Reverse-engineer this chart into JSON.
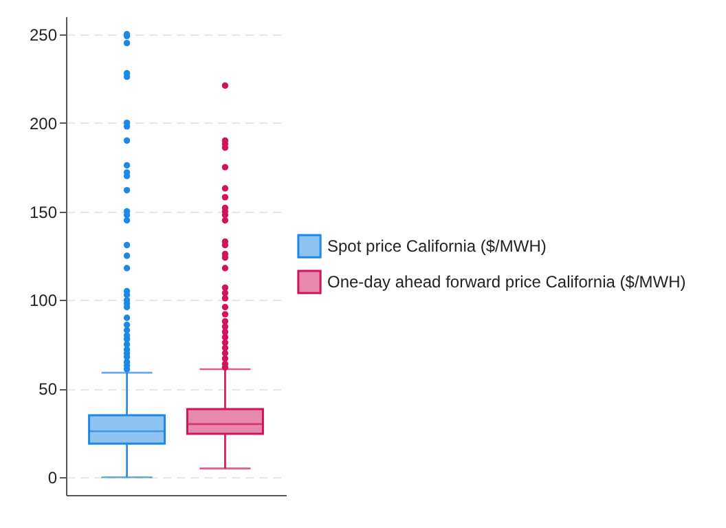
{
  "chart_data": {
    "type": "box",
    "categories": [
      null
    ],
    "series": [
      {
        "name": "Spot price California ($/MWH)",
        "color": "#1e88e5",
        "boxes": [
          {
            "low": 0,
            "q1": 19,
            "median": 26,
            "q3": 35,
            "high": 59,
            "outliers": [
              61,
              63,
              65,
              68,
              70,
              72,
              75,
              78,
              80,
              83,
              86,
              90,
              96,
              98,
              100,
              103,
              105,
              118,
              125,
              131,
              145,
              148,
              150,
              162,
              170,
              172,
              176,
              190,
              198,
              200,
              226,
              228,
              245,
              249,
              250
            ]
          }
        ]
      },
      {
        "name": "One-day ahead forward price California ($/MWH)",
        "color": "#d0135b",
        "boxes": [
          {
            "low": 5,
            "q1": 24.5,
            "median": 30,
            "q3": 38.5,
            "high": 61,
            "outliers": [
              62,
              64,
              67,
              70,
              73,
              76,
              79,
              82,
              85,
              88,
              92,
              96,
              101,
              104,
              107,
              118,
              124,
              126,
              131,
              133,
              145,
              148,
              150,
              152,
              158,
              163,
              175,
              186,
              188,
              190,
              221
            ]
          }
        ]
      }
    ],
    "ylim": [
      -10,
      260
    ],
    "yticks": [
      0,
      50,
      100,
      150,
      200,
      250
    ],
    "grid": "y",
    "legend": "right",
    "tick_labels": "y",
    "marker": "circle"
  }
}
